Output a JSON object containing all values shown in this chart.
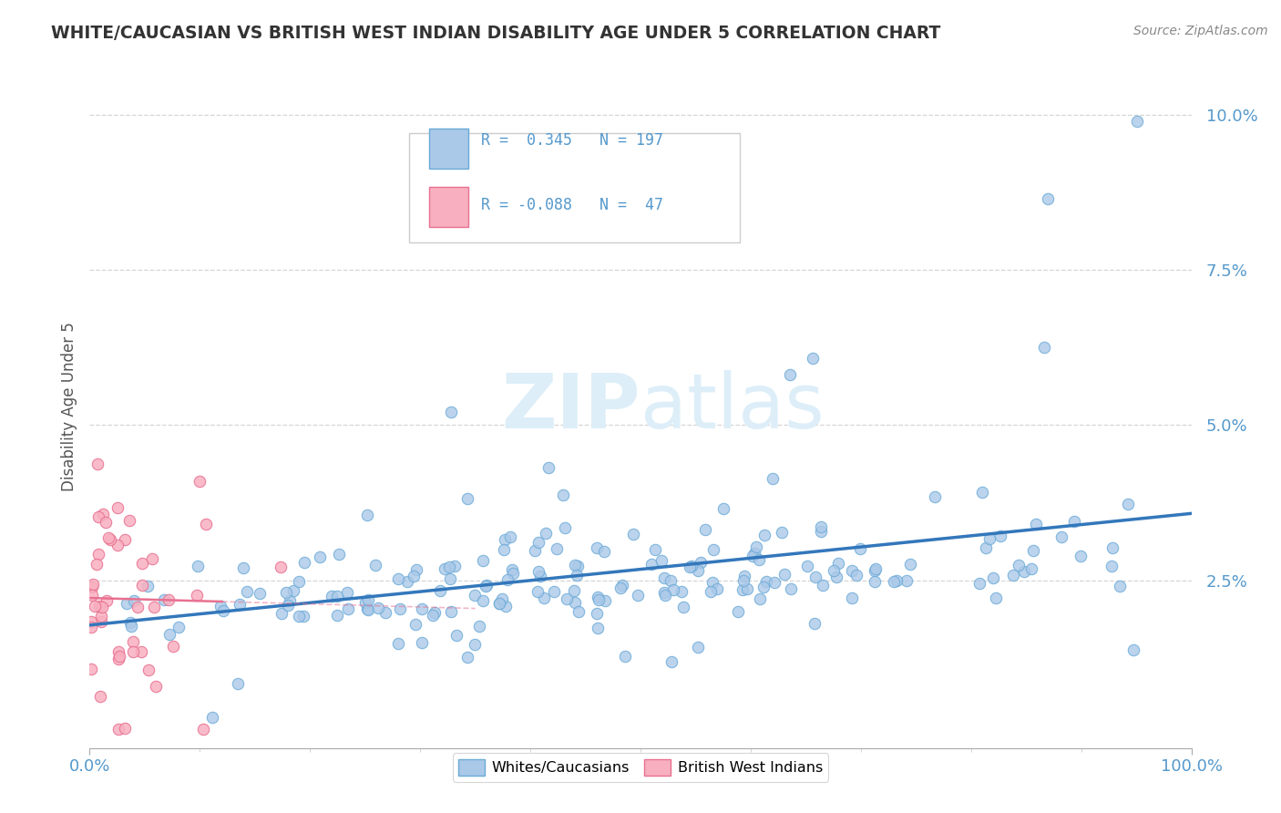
{
  "title": "WHITE/CAUCASIAN VS BRITISH WEST INDIAN DISABILITY AGE UNDER 5 CORRELATION CHART",
  "source": "Source: ZipAtlas.com",
  "ylabel": "Disability Age Under 5",
  "xlim": [
    0,
    1.0
  ],
  "ylim": [
    -0.002,
    0.108
  ],
  "r_white": 0.345,
  "n_white": 197,
  "r_bwi": -0.088,
  "n_bwi": 47,
  "white_color": "#aac8e8",
  "white_edge": "#6aaad8",
  "bwi_color": "#f8b0c0",
  "bwi_edge": "#e87090",
  "white_line_color": "#3377bb",
  "bwi_line_color": "#e87090",
  "background_color": "#ffffff",
  "grid_color": "#cccccc",
  "title_color": "#333333",
  "watermark_color": "#ddeef8",
  "legend_labels": [
    "Whites/Caucasians",
    "British West Indians"
  ],
  "tick_color": "#5599cc",
  "ytick_positions": [
    0.025,
    0.05,
    0.075,
    0.1
  ],
  "ytick_labels": [
    "2.5%",
    "5.0%",
    "7.5%",
    "10.0%"
  ],
  "xtick_positions": [
    0.0,
    1.0
  ],
  "xtick_labels": [
    "0.0%",
    "100.0%"
  ]
}
